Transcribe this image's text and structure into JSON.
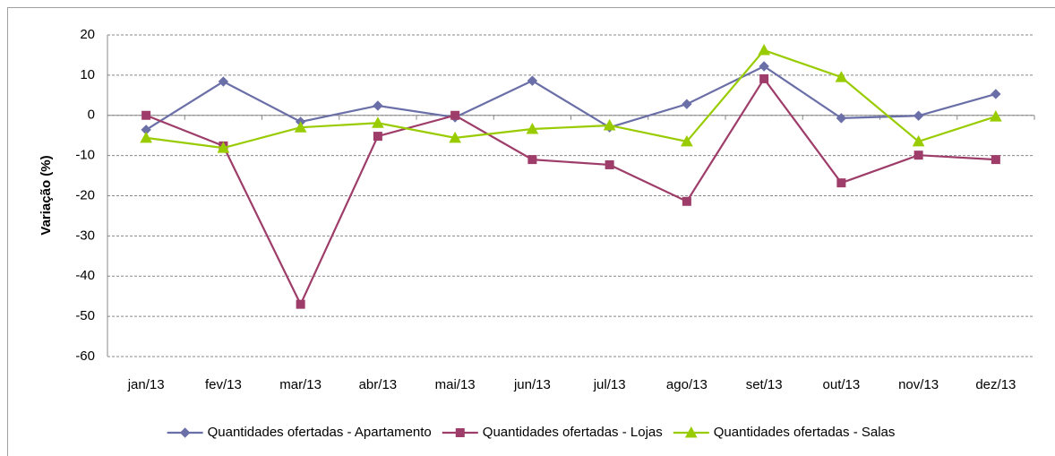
{
  "chart_data": {
    "type": "line",
    "y_label": "Variação (%)",
    "categories": [
      "jan/13",
      "fev/13",
      "mar/13",
      "abr/13",
      "mai/13",
      "jun/13",
      "jul/13",
      "ago/13",
      "set/13",
      "out/13",
      "nov/13",
      "dez/13"
    ],
    "series": [
      {
        "name": "Quantidades ofertadas - Apartamento",
        "color": "#6b6fa8",
        "marker": "diamond",
        "values": [
          -3.6,
          8.4,
          -1.6,
          2.4,
          -0.5,
          8.6,
          -3,
          2.8,
          12.2,
          -0.7,
          -0.1,
          5.3
        ]
      },
      {
        "name": "Quantidades ofertadas - Lojas",
        "color": "#9e3d6a",
        "marker": "square",
        "values": [
          0,
          -7.6,
          -47,
          -5.2,
          0,
          -11,
          -12.3,
          -21.4,
          9.1,
          -16.8,
          -9.9,
          -11
        ]
      },
      {
        "name": "Quantidades ofertadas - Salas",
        "color": "#99cc00",
        "marker": "triangle",
        "values": [
          -5.6,
          -8.1,
          -3,
          -1.9,
          -5.6,
          -3.4,
          -2.5,
          -6.5,
          16.2,
          9.5,
          -6.5,
          -0.3
        ]
      }
    ],
    "ylim": [
      -60,
      20
    ],
    "yticks": [
      -60,
      -50,
      -40,
      -30,
      -20,
      -10,
      0,
      10,
      20
    ],
    "grid": true,
    "legend": "bottom"
  }
}
